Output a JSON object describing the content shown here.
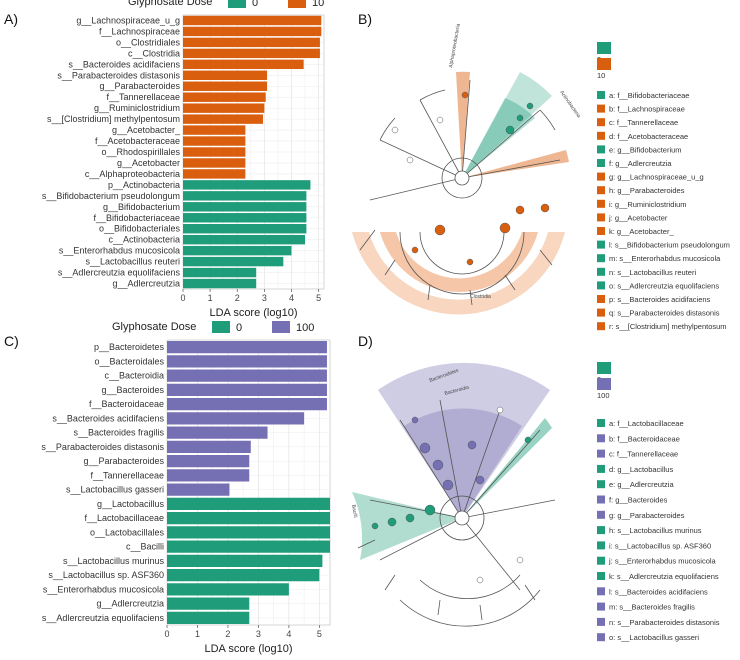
{
  "panels": {
    "a": "A)",
    "b": "B)",
    "c": "C)",
    "d": "D)"
  },
  "colors": {
    "green": "#1f9d7a",
    "orange": "#d95f0e",
    "purple": "#7570b3"
  },
  "chart_data": [
    {
      "type": "bar",
      "id": "A",
      "legend_title": "Glyphosate Dose",
      "legend": [
        {
          "label": "0",
          "color": "#1f9d7a"
        },
        {
          "label": "10",
          "color": "#d95f0e"
        }
      ],
      "xlabel": "LDA score (log10)",
      "xlim": [
        0,
        5.2
      ],
      "xticks": [
        0,
        1,
        2,
        3,
        4,
        5
      ],
      "bars": [
        {
          "label": "g__Lachnospiraceae_u_g",
          "value": 5.1,
          "group": "10"
        },
        {
          "label": "f__Lachnospiraceae",
          "value": 5.1,
          "group": "10"
        },
        {
          "label": "o__Clostridiales",
          "value": 5.05,
          "group": "10"
        },
        {
          "label": "c__Clostridia",
          "value": 5.05,
          "group": "10"
        },
        {
          "label": "s__Bacteroides acidifaciens",
          "value": 4.45,
          "group": "10"
        },
        {
          "label": "s__Parabacteroides distasonis",
          "value": 3.1,
          "group": "10"
        },
        {
          "label": "g__Parabacteroides",
          "value": 3.1,
          "group": "10"
        },
        {
          "label": "f__Tannerellaceae",
          "value": 3.05,
          "group": "10"
        },
        {
          "label": "g__Ruminiclostridium",
          "value": 3.0,
          "group": "10"
        },
        {
          "label": "s__[Clostridium] methylpentosum",
          "value": 2.95,
          "group": "10"
        },
        {
          "label": "g__Acetobacter_",
          "value": 2.3,
          "group": "10"
        },
        {
          "label": "f__Acetobacteraceae",
          "value": 2.3,
          "group": "10"
        },
        {
          "label": "o__Rhodospirillales",
          "value": 2.3,
          "group": "10"
        },
        {
          "label": "g__Acetobacter",
          "value": 2.3,
          "group": "10"
        },
        {
          "label": "c__Alphaproteobacteria",
          "value": 2.3,
          "group": "10"
        },
        {
          "label": "p__Actinobacteria",
          "value": 4.7,
          "group": "0"
        },
        {
          "label": "s__Bifidobacterium pseudolongum",
          "value": 4.55,
          "group": "0"
        },
        {
          "label": "g__Bifidobacterium",
          "value": 4.55,
          "group": "0"
        },
        {
          "label": "f__Bifidobacteriaceae",
          "value": 4.55,
          "group": "0"
        },
        {
          "label": "o__Bifidobacteriales",
          "value": 4.55,
          "group": "0"
        },
        {
          "label": "c__Actinobacteria",
          "value": 4.5,
          "group": "0"
        },
        {
          "label": "s__Enterorhabdus mucosicola",
          "value": 4.0,
          "group": "0"
        },
        {
          "label": "s__Lactobacillus reuteri",
          "value": 3.7,
          "group": "0"
        },
        {
          "label": "s__Adlercreutzia equolifaciens",
          "value": 2.7,
          "group": "0"
        },
        {
          "label": "g__Adlercreutzia",
          "value": 2.7,
          "group": "0"
        }
      ]
    },
    {
      "type": "bar",
      "id": "C",
      "legend_title": "Glyphosate Dose",
      "legend": [
        {
          "label": "0",
          "color": "#1f9d7a"
        },
        {
          "label": "100",
          "color": "#7570b3"
        }
      ],
      "xlabel": "LDA score (log10)",
      "xlim": [
        0,
        5.35
      ],
      "xticks": [
        0,
        1,
        2,
        3,
        4,
        5
      ],
      "bars": [
        {
          "label": "p__Bacteroidetes",
          "value": 5.25,
          "group": "100"
        },
        {
          "label": "o__Bacteroidales",
          "value": 5.25,
          "group": "100"
        },
        {
          "label": "c__Bacteroidia",
          "value": 5.25,
          "group": "100"
        },
        {
          "label": "g__Bacteroides",
          "value": 5.25,
          "group": "100"
        },
        {
          "label": "f__Bacteroidaceae",
          "value": 5.25,
          "group": "100"
        },
        {
          "label": "s__Bacteroides acidifaciens",
          "value": 4.5,
          "group": "100"
        },
        {
          "label": "s__Bacteroides fragilis",
          "value": 3.3,
          "group": "100"
        },
        {
          "label": "s__Parabacteroides distasonis",
          "value": 2.75,
          "group": "100"
        },
        {
          "label": "g__Parabacteroides",
          "value": 2.7,
          "group": "100"
        },
        {
          "label": "f__Tannerellaceae",
          "value": 2.7,
          "group": "100"
        },
        {
          "label": "s__Lactobacillus gasseri",
          "value": 2.05,
          "group": "100"
        },
        {
          "label": "g__Lactobacillus",
          "value": 5.35,
          "group": "0"
        },
        {
          "label": "f__Lactobacillaceae",
          "value": 5.35,
          "group": "0"
        },
        {
          "label": "o__Lactobacillales",
          "value": 5.35,
          "group": "0"
        },
        {
          "label": "c__Bacilli",
          "value": 5.35,
          "group": "0"
        },
        {
          "label": "s__Lactobacillus murinus",
          "value": 5.1,
          "group": "0"
        },
        {
          "label": "s__Lactobacillus sp. ASF360",
          "value": 5.0,
          "group": "0"
        },
        {
          "label": "s__Enterorhabdus mucosicola",
          "value": 4.0,
          "group": "0"
        },
        {
          "label": "g__Adlercreutzia",
          "value": 2.7,
          "group": "0"
        },
        {
          "label": "s__Adlercreutzia equolifaciens",
          "value": 2.7,
          "group": "0"
        }
      ]
    }
  ],
  "cladogram_b": {
    "legend": [
      {
        "label": "0",
        "color": "#1f9d7a"
      },
      {
        "label": "10",
        "color": "#d95f0e"
      }
    ],
    "entries": [
      {
        "text": "a: f__Bifidobacteriaceae",
        "group": "0"
      },
      {
        "text": "b: f__Lachnospiraceae",
        "group": "10"
      },
      {
        "text": "c: f__Tannerellaceae",
        "group": "10"
      },
      {
        "text": "d: f__Acetobacteraceae",
        "group": "10"
      },
      {
        "text": "e: g__Bifidobacterium",
        "group": "0"
      },
      {
        "text": "f: g__Adlercreutzia",
        "group": "0"
      },
      {
        "text": "g: g__Lachnospiraceae_u_g",
        "group": "10"
      },
      {
        "text": "h: g__Parabacteroides",
        "group": "10"
      },
      {
        "text": "i: g__Ruminiclostridium",
        "group": "10"
      },
      {
        "text": "j: g__Acetobacter",
        "group": "10"
      },
      {
        "text": "k: g__Acetobacter_",
        "group": "10"
      },
      {
        "text": "l: s__Bifidobacterium pseudolongum",
        "group": "0"
      },
      {
        "text": "m: s__Enterorhabdus mucosicola",
        "group": "0"
      },
      {
        "text": "n: s__Lactobacillus reuteri",
        "group": "0"
      },
      {
        "text": "o: s__Adlercreutzia equolifaciens",
        "group": "0"
      },
      {
        "text": "p: s__Bacteroides acidifaciens",
        "group": "10"
      },
      {
        "text": "q: s__Parabacteroides distasonis",
        "group": "10"
      },
      {
        "text": "r: s__[Clostridium] methylpentosum",
        "group": "10"
      }
    ],
    "clade_labels": [
      "Actinobacteria",
      "Clostridia",
      "Alphaproteobacteria"
    ]
  },
  "cladogram_d": {
    "legend": [
      {
        "label": "0",
        "color": "#1f9d7a"
      },
      {
        "label": "100",
        "color": "#7570b3"
      }
    ],
    "entries": [
      {
        "text": "a: f__Lactobacillaceae",
        "group": "0"
      },
      {
        "text": "b: f__Bacteroidaceae",
        "group": "100"
      },
      {
        "text": "c: f__Tannerellaceae",
        "group": "100"
      },
      {
        "text": "d: g__Lactobacillus",
        "group": "0"
      },
      {
        "text": "e: g__Adlercreutzia",
        "group": "0"
      },
      {
        "text": "f: g__Bacteroides",
        "group": "100"
      },
      {
        "text": "g: g__Parabacteroides",
        "group": "100"
      },
      {
        "text": "h: s__Lactobacillus murinus",
        "group": "0"
      },
      {
        "text": "i: s__Lactobacillus sp. ASF360",
        "group": "0"
      },
      {
        "text": "j: s__Enterorhabdus mucosicola",
        "group": "0"
      },
      {
        "text": "k: s__Adlercreutzia equolifaciens",
        "group": "0"
      },
      {
        "text": "l: s__Bacteroides acidifaciens",
        "group": "100"
      },
      {
        "text": "m: s__Bacteroides fragilis",
        "group": "100"
      },
      {
        "text": "n: s__Parabacteroides distasonis",
        "group": "100"
      },
      {
        "text": "o: s__Lactobacillus gasseri",
        "group": "100"
      }
    ],
    "clade_labels": [
      "Bacteroidetes",
      "Bacteroidia",
      "Bacilli"
    ]
  }
}
